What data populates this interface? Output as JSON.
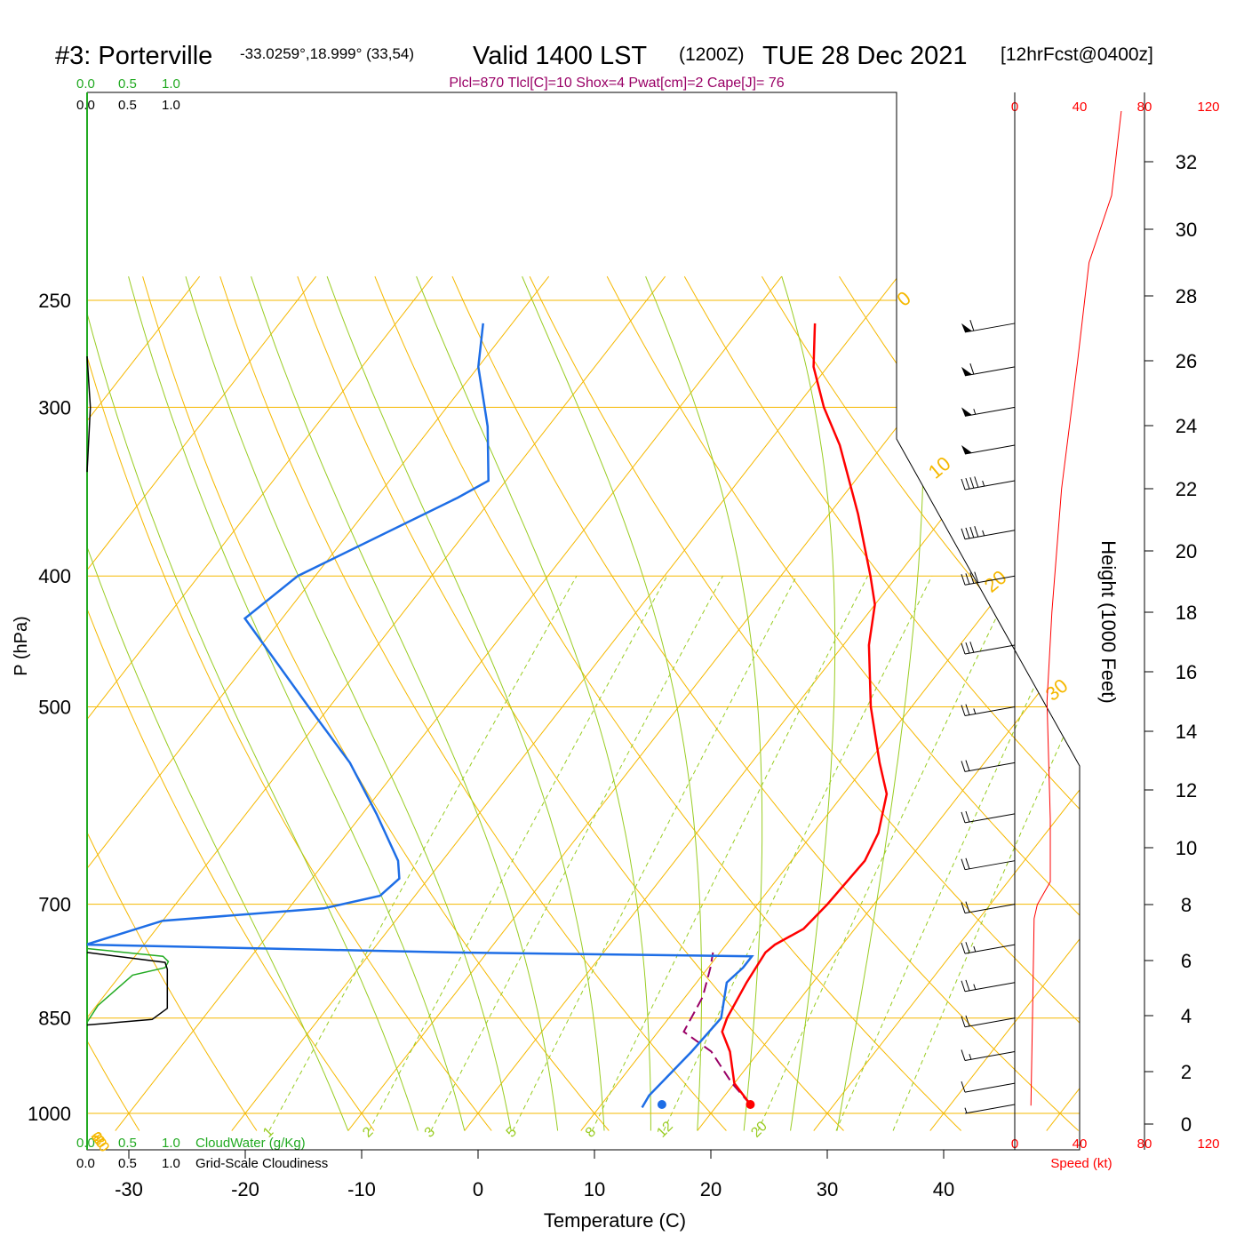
{
  "header": {
    "station": "#3: Porterville",
    "coords": "-33.0259°,18.999° (33,54)",
    "valid": "Valid 1400 LST",
    "zulu": "(1200Z)",
    "date": "TUE 28 Dec 2021",
    "forecast": "[12hrFcst@0400z]",
    "indices": "Plcl=870 Tlcl[C]=10 Shox=4 Pwat[cm]=2 Cape[J]= 76"
  },
  "colors": {
    "temperature": "#ff0000",
    "dewpoint": "#1e6ee6",
    "parcel": "#990066",
    "cloud_water": "#22aa22",
    "cloudiness": "#000000",
    "isotherm": "#f5b800",
    "dry_adiabat": "#f5b800",
    "moist_adiabat": "#99cc22",
    "mixing_ratio": "#99cc22",
    "wind_speed": "#ff0000"
  },
  "chart_data": {
    "type": "line",
    "title": "#3: Porterville",
    "xlabel": "Temperature (C)",
    "ylabel": "P (hPa)",
    "right_axis_label": "Height (1000 Feet)",
    "x_ticks": [
      -30,
      -20,
      -10,
      0,
      10,
      20,
      30,
      40
    ],
    "pressure_ticks": [
      250,
      300,
      400,
      500,
      700,
      850,
      1000
    ],
    "height_ticks": [
      0,
      2,
      4,
      6,
      8,
      10,
      12,
      14,
      16,
      18,
      20,
      22,
      24,
      26,
      28,
      30,
      32
    ],
    "isotherm_labels": [
      -30,
      -20,
      -10,
      0,
      10,
      20,
      30
    ],
    "mixing_ratio_labels": [
      "1",
      "2",
      "3",
      "5",
      "8",
      "12",
      "20"
    ],
    "dry_adiabat_labels": [
      10,
      20,
      30,
      0
    ],
    "temperature_profile": [
      {
        "p": 985,
        "t": 22.8
      },
      {
        "p": 950,
        "t": 20.0
      },
      {
        "p": 900,
        "t": 17.5
      },
      {
        "p": 870,
        "t": 15.5
      },
      {
        "p": 850,
        "t": 15.0
      },
      {
        "p": 800,
        "t": 14.3
      },
      {
        "p": 760,
        "t": 13.9
      },
      {
        "p": 750,
        "t": 14.2
      },
      {
        "p": 730,
        "t": 15.6
      },
      {
        "p": 700,
        "t": 16.0
      },
      {
        "p": 650,
        "t": 16.3
      },
      {
        "p": 620,
        "t": 15.6
      },
      {
        "p": 580,
        "t": 13.7
      },
      {
        "p": 550,
        "t": 11.0
      },
      {
        "p": 500,
        "t": 6.5
      },
      {
        "p": 450,
        "t": 2.2
      },
      {
        "p": 420,
        "t": 0.0
      },
      {
        "p": 400,
        "t": -2.3
      },
      {
        "p": 360,
        "t": -7.5
      },
      {
        "p": 320,
        "t": -13.7
      },
      {
        "p": 300,
        "t": -17.6
      },
      {
        "p": 280,
        "t": -21.2
      },
      {
        "p": 260,
        "t": -24.0
      }
    ],
    "dewpoint_profile": [
      {
        "p": 990,
        "t": 13.7
      },
      {
        "p": 970,
        "t": 13.5
      },
      {
        "p": 900,
        "t": 14.2
      },
      {
        "p": 850,
        "t": 14.5
      },
      {
        "p": 800,
        "t": 12.6
      },
      {
        "p": 780,
        "t": 13.0
      },
      {
        "p": 765,
        "t": 13.0
      },
      {
        "p": 760,
        "t": -13.0
      },
      {
        "p": 750,
        "t": -45.0
      },
      {
        "p": 720,
        "t": -40.0
      },
      {
        "p": 705,
        "t": -27.0
      },
      {
        "p": 690,
        "t": -23.0
      },
      {
        "p": 670,
        "t": -22.5
      },
      {
        "p": 650,
        "t": -23.8
      },
      {
        "p": 600,
        "t": -28.8
      },
      {
        "p": 550,
        "t": -34.5
      },
      {
        "p": 500,
        "t": -41.8
      },
      {
        "p": 430,
        "t": -53.2
      },
      {
        "p": 400,
        "t": -51.5
      },
      {
        "p": 350,
        "t": -43.0
      },
      {
        "p": 340,
        "t": -41.5
      },
      {
        "p": 310,
        "t": -45.2
      },
      {
        "p": 280,
        "t": -50.0
      },
      {
        "p": 260,
        "t": -52.5
      }
    ],
    "parcel_profile": [
      {
        "p": 985,
        "t": 22.8
      },
      {
        "p": 950,
        "t": 19.8
      },
      {
        "p": 900,
        "t": 15.9
      },
      {
        "p": 870,
        "t": 12.2
      },
      {
        "p": 820,
        "t": 11.5
      },
      {
        "p": 780,
        "t": 10.2
      },
      {
        "p": 760,
        "t": 9.4
      }
    ],
    "surface": {
      "p": 985,
      "temperature": 22.8,
      "dewpoint": 15.2
    },
    "wind_profile": [
      {
        "p": 985,
        "speed": 5
      },
      {
        "p": 950,
        "speed": 10
      },
      {
        "p": 900,
        "speed": 15
      },
      {
        "p": 850,
        "speed": 20
      },
      {
        "p": 800,
        "speed": 25
      },
      {
        "p": 750,
        "speed": 25
      },
      {
        "p": 700,
        "speed": 20
      },
      {
        "p": 650,
        "speed": 20
      },
      {
        "p": 600,
        "speed": 20
      },
      {
        "p": 550,
        "speed": 20
      },
      {
        "p": 500,
        "speed": 25
      },
      {
        "p": 450,
        "speed": 30
      },
      {
        "p": 400,
        "speed": 40
      },
      {
        "p": 370,
        "speed": 45
      },
      {
        "p": 340,
        "speed": 45
      },
      {
        "p": 320,
        "speed": 50
      },
      {
        "p": 300,
        "speed": 55
      },
      {
        "p": 280,
        "speed": 60
      },
      {
        "p": 260,
        "speed": 60
      }
    ],
    "wind_speed_axis": {
      "ticks": [
        "0",
        "40",
        "80",
        "120"
      ],
      "label": "Speed (kt)"
    },
    "wind_speed_curve": [
      {
        "h": 0.7,
        "v": 10
      },
      {
        "h": 4,
        "v": 11
      },
      {
        "h": 7.5,
        "v": 12
      },
      {
        "h": 8,
        "v": 14
      },
      {
        "h": 8.8,
        "v": 22
      },
      {
        "h": 11,
        "v": 22
      },
      {
        "h": 15,
        "v": 20
      },
      {
        "h": 18,
        "v": 23
      },
      {
        "h": 22,
        "v": 29
      },
      {
        "h": 26,
        "v": 39
      },
      {
        "h": 29,
        "v": 46
      },
      {
        "h": 31,
        "v": 60
      },
      {
        "h": 33.5,
        "v": 66
      }
    ],
    "cloud_axis": {
      "cloud_water_ticks": [
        "0.0",
        "0.5",
        "1.0"
      ],
      "cloudiness_ticks": [
        "0.0",
        "0.5",
        "1.0"
      ],
      "cloud_water_label": "CloudWater (g/Kg)",
      "cloudiness_label": "Grid-Scale Cloudiness"
    },
    "cloud_water_profile": [
      {
        "p": 856,
        "v": 0.0
      },
      {
        "p": 832,
        "v": 0.1
      },
      {
        "p": 790,
        "v": 0.42
      },
      {
        "p": 780,
        "v": 0.72
      },
      {
        "p": 772,
        "v": 0.75
      },
      {
        "p": 765,
        "v": 0.7
      },
      {
        "p": 755,
        "v": 0.0
      }
    ],
    "cloudiness_profile": [
      {
        "p": 860,
        "v": 0.0
      },
      {
        "p": 852,
        "v": 0.6
      },
      {
        "p": 836,
        "v": 0.74
      },
      {
        "p": 782,
        "v": 0.74
      },
      {
        "p": 773,
        "v": 0.72
      },
      {
        "p": 760,
        "v": 0.0
      },
      {
        "p": 335,
        "v": 0.0
      },
      {
        "p": 300,
        "v": 0.03
      },
      {
        "p": 275,
        "v": 0.0
      }
    ]
  }
}
